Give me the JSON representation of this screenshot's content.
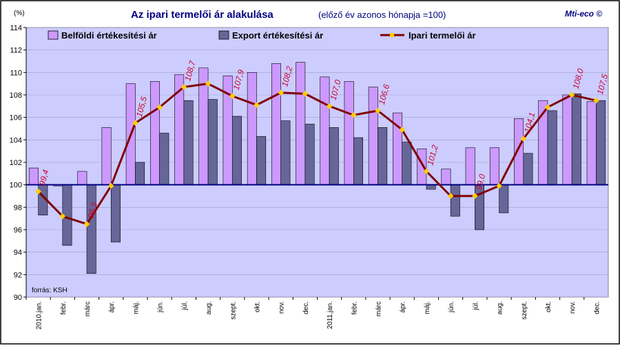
{
  "chart_data": {
    "type": "bar+line",
    "title": "Az ipari termelői ár alakulása",
    "subtitle": "(előző év azonos hónapja =100)",
    "brand": "Mti-eco ©",
    "y_unit": "(%)",
    "source_note": "forrás: KSH",
    "ylim": [
      90,
      114
    ],
    "yticks": [
      90,
      92,
      94,
      96,
      98,
      100,
      102,
      104,
      106,
      108,
      110,
      112,
      114
    ],
    "baseline": 100,
    "grid": true,
    "legend_position": "top",
    "categories": [
      "2010.jan.",
      "febr.",
      "márc",
      "ápr.",
      "máj.",
      "jún.",
      "júl.",
      "aug.",
      "szept.",
      "okt.",
      "nov.",
      "dec.",
      "2011.jan.",
      "febr.",
      "márc",
      "ápr.",
      "máj.",
      "jún.",
      "júl.",
      "aug.",
      "szept.",
      "okt.",
      "nov.",
      "dec."
    ],
    "series": [
      {
        "name": "Belföldi értékesítési ár",
        "kind": "bar",
        "color": "#cc99ff",
        "values": [
          101.5,
          99.9,
          101.2,
          105.1,
          109.0,
          109.2,
          109.8,
          110.4,
          109.7,
          110.0,
          110.8,
          110.9,
          109.6,
          109.2,
          108.7,
          106.4,
          103.2,
          101.4,
          103.3,
          103.3,
          105.9,
          107.5,
          108.0,
          107.4
        ]
      },
      {
        "name": "Export értékesítési ár",
        "kind": "bar",
        "color": "#666699",
        "values": [
          97.3,
          94.6,
          92.1,
          94.9,
          102.0,
          104.6,
          107.5,
          107.6,
          106.1,
          104.3,
          105.7,
          105.4,
          105.1,
          104.2,
          105.1,
          103.8,
          99.6,
          97.2,
          96.0,
          97.5,
          102.8,
          106.6,
          108.1,
          107.5
        ]
      },
      {
        "name": "Ipari termelői ár",
        "kind": "line",
        "color": "#800000",
        "marker_color": "#ffcc00",
        "values": [
          99.4,
          97.2,
          96.5,
          99.9,
          105.5,
          106.9,
          108.7,
          109.0,
          107.9,
          107.1,
          108.2,
          108.1,
          107.0,
          106.2,
          106.6,
          104.9,
          101.2,
          99.0,
          99.0,
          99.9,
          104.1,
          106.9,
          108.0,
          107.5
        ],
        "labels": [
          "99,4",
          "",
          "96,5",
          "",
          "105,5",
          "",
          "108,7",
          "",
          "107,9",
          "",
          "108,2",
          "",
          "107,0",
          "",
          "106,6",
          "",
          "101,2",
          "",
          "99,0",
          "",
          "104,1",
          "",
          "108,0",
          "107,5"
        ]
      }
    ],
    "colors": {
      "plot_background": "#ccccff",
      "label_color": "#cc0033",
      "title_color": "#000080",
      "brand_color": "#000080",
      "frame": "#000000"
    }
  }
}
